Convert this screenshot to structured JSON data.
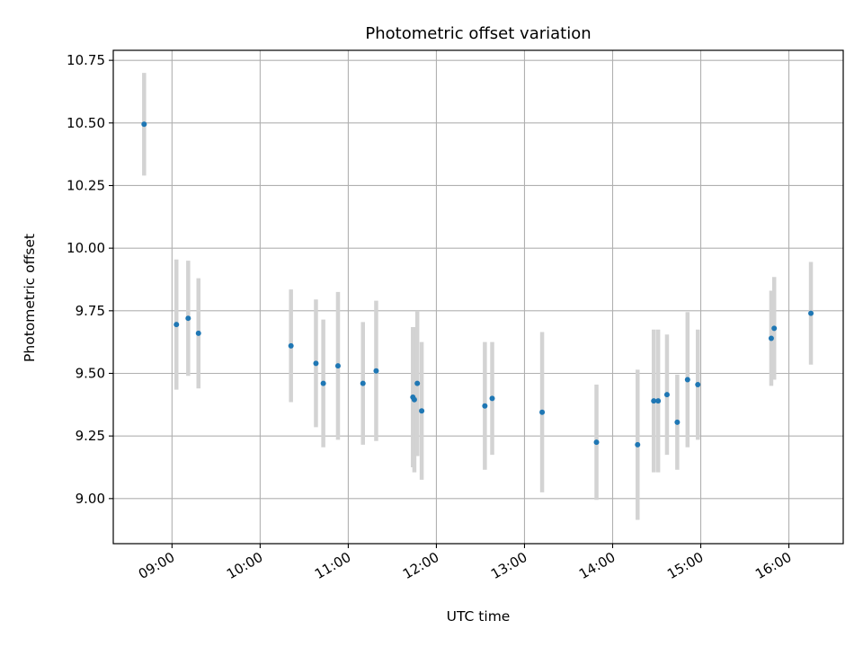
{
  "chart_data": {
    "type": "scatter",
    "title": "Photometric offset variation",
    "xlabel": "UTC time",
    "ylabel": "Photometric offset",
    "x_axis_type": "time",
    "xlim": [
      "08:20",
      "16:37"
    ],
    "ylim": [
      8.82,
      10.79
    ],
    "grid": true,
    "legend": "none",
    "x_ticks": [
      "09:00",
      "10:00",
      "11:00",
      "12:00",
      "13:00",
      "14:00",
      "15:00",
      "16:00"
    ],
    "y_ticks": [
      9.0,
      9.25,
      9.5,
      9.75,
      10.0,
      10.25,
      10.5,
      10.75
    ],
    "y_tick_labels": [
      "9.00",
      "9.25",
      "9.50",
      "9.75",
      "10.00",
      "10.25",
      "10.50",
      "10.75"
    ],
    "colors": {
      "marker": "#1f77b4",
      "errorbar": "#d3d3d3",
      "grid": "#b0b0b0"
    },
    "series": [
      {
        "points": [
          {
            "x": "08:41",
            "y": 10.495,
            "err": 0.205
          },
          {
            "x": "09:03",
            "y": 9.695,
            "err": 0.26
          },
          {
            "x": "09:11",
            "y": 9.72,
            "err": 0.23
          },
          {
            "x": "09:18",
            "y": 9.66,
            "err": 0.22
          },
          {
            "x": "10:21",
            "y": 9.61,
            "err": 0.225
          },
          {
            "x": "10:38",
            "y": 9.54,
            "err": 0.255
          },
          {
            "x": "10:43",
            "y": 9.46,
            "err": 0.255
          },
          {
            "x": "10:53",
            "y": 9.53,
            "err": 0.295
          },
          {
            "x": "11:10",
            "y": 9.46,
            "err": 0.245
          },
          {
            "x": "11:19",
            "y": 9.51,
            "err": 0.28
          },
          {
            "x": "11:44",
            "y": 9.405,
            "err": 0.28
          },
          {
            "x": "11:45",
            "y": 9.395,
            "err": 0.29
          },
          {
            "x": "11:47",
            "y": 9.46,
            "err": 0.29
          },
          {
            "x": "11:50",
            "y": 9.35,
            "err": 0.275
          },
          {
            "x": "12:33",
            "y": 9.37,
            "err": 0.255
          },
          {
            "x": "12:38",
            "y": 9.4,
            "err": 0.225
          },
          {
            "x": "13:12",
            "y": 9.345,
            "err": 0.32
          },
          {
            "x": "13:49",
            "y": 9.225,
            "err": 0.23
          },
          {
            "x": "14:17",
            "y": 9.215,
            "err": 0.3
          },
          {
            "x": "14:28",
            "y": 9.39,
            "err": 0.285
          },
          {
            "x": "14:31",
            "y": 9.39,
            "err": 0.285
          },
          {
            "x": "14:37",
            "y": 9.415,
            "err": 0.24
          },
          {
            "x": "14:44",
            "y": 9.305,
            "err": 0.19
          },
          {
            "x": "14:51",
            "y": 9.475,
            "err": 0.27
          },
          {
            "x": "14:58",
            "y": 9.455,
            "err": 0.22
          },
          {
            "x": "15:48",
            "y": 9.64,
            "err": 0.19
          },
          {
            "x": "15:50",
            "y": 9.68,
            "err": 0.205
          },
          {
            "x": "16:15",
            "y": 9.74,
            "err": 0.205
          }
        ]
      }
    ]
  }
}
